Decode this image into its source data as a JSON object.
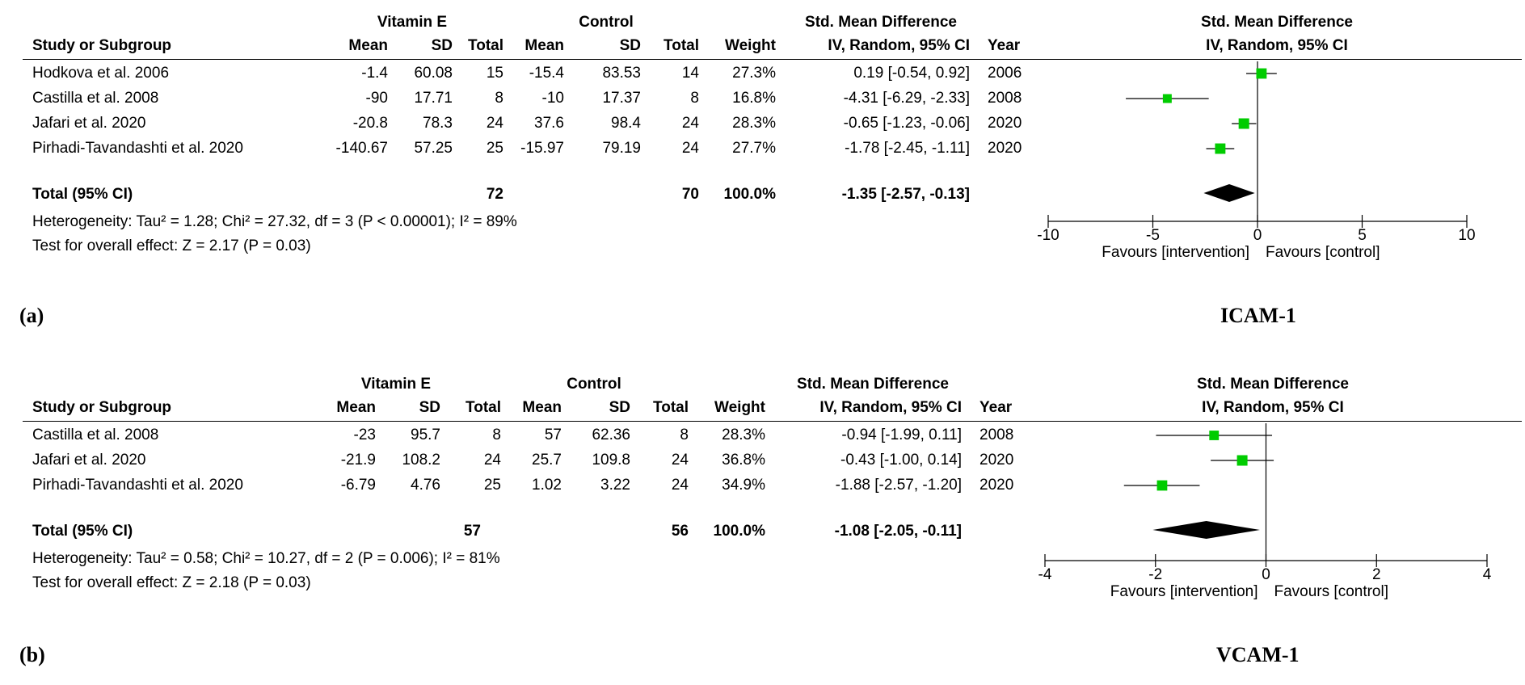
{
  "headers": {
    "study": "Study or Subgroup",
    "exp_group": "Vitamin E",
    "ctl_group": "Control",
    "mean": "Mean",
    "sd": "SD",
    "total": "Total",
    "weight": "Weight",
    "smd_title": "Std. Mean Difference",
    "smd_method": "IV, Random, 95% CI",
    "year": "Year",
    "plot_title": "Std. Mean Difference",
    "plot_method": "IV, Random, 95% CI"
  },
  "panels": [
    {
      "label": "(a)",
      "outcome": "ICAM-1",
      "studies": [
        {
          "name": "Hodkova et al. 2006",
          "e_mean": "-1.4",
          "e_sd": "60.08",
          "e_total": "15",
          "c_mean": "-15.4",
          "c_sd": "83.53",
          "c_total": "14",
          "weight": "27.3%",
          "ci_text": "0.19 [-0.54, 0.92]",
          "year": "2006"
        },
        {
          "name": "Castilla et al. 2008",
          "e_mean": "-90",
          "e_sd": "17.71",
          "e_total": "8",
          "c_mean": "-10",
          "c_sd": "17.37",
          "c_total": "8",
          "weight": "16.8%",
          "ci_text": "-4.31 [-6.29, -2.33]",
          "year": "2008"
        },
        {
          "name": "Jafari et al. 2020",
          "e_mean": "-20.8",
          "e_sd": "78.3",
          "e_total": "24",
          "c_mean": "37.6",
          "c_sd": "98.4",
          "c_total": "24",
          "weight": "28.3%",
          "ci_text": "-0.65 [-1.23, -0.06]",
          "year": "2020"
        },
        {
          "name": "Pirhadi-Tavandashti et al. 2020",
          "e_mean": "-140.67",
          "e_sd": "57.25",
          "e_total": "25",
          "c_mean": "-15.97",
          "c_sd": "79.19",
          "c_total": "24",
          "weight": "27.7%",
          "ci_text": "-1.78 [-2.45, -1.11]",
          "year": "2020"
        }
      ],
      "total": {
        "label": "Total (95% CI)",
        "e_total": "72",
        "c_total": "70",
        "weight": "100.0%",
        "ci_text": "-1.35 [-2.57, -0.13]"
      },
      "heterogeneity": "Heterogeneity: Tau² = 1.28; Chi² = 27.32, df = 3 (P < 0.00001); I² = 89%",
      "overall_effect": "Test for overall effect: Z = 2.17 (P = 0.03)",
      "favours_left": "Favours [intervention]",
      "favours_right": "Favours [control]"
    },
    {
      "label": "(b)",
      "outcome": "VCAM-1",
      "studies": [
        {
          "name": "Castilla et al. 2008",
          "e_mean": "-23",
          "e_sd": "95.7",
          "e_total": "8",
          "c_mean": "57",
          "c_sd": "62.36",
          "c_total": "8",
          "weight": "28.3%",
          "ci_text": "-0.94 [-1.99, 0.11]",
          "year": "2008"
        },
        {
          "name": "Jafari et al. 2020",
          "e_mean": "-21.9",
          "e_sd": "108.2",
          "e_total": "24",
          "c_mean": "25.7",
          "c_sd": "109.8",
          "c_total": "24",
          "weight": "36.8%",
          "ci_text": "-0.43 [-1.00, 0.14]",
          "year": "2020"
        },
        {
          "name": "Pirhadi-Tavandashti et al. 2020",
          "e_mean": "-6.79",
          "e_sd": "4.76",
          "e_total": "25",
          "c_mean": "1.02",
          "c_sd": "3.22",
          "c_total": "24",
          "weight": "34.9%",
          "ci_text": "-1.88 [-2.57, -1.20]",
          "year": "2020"
        }
      ],
      "total": {
        "label": "Total (95% CI)",
        "e_total": "57",
        "c_total": "56",
        "weight": "100.0%",
        "ci_text": "-1.08 [-2.05, -0.11]"
      },
      "heterogeneity": "Heterogeneity: Tau² = 0.58; Chi² = 10.27, df = 2 (P = 0.006); I² = 81%",
      "overall_effect": "Test for overall effect: Z = 2.18 (P = 0.03)",
      "favours_left": "Favours [intervention]",
      "favours_right": "Favours [control]"
    }
  ],
  "chart_data": [
    {
      "type": "forest",
      "title": "Std. Mean Difference",
      "subtitle": "IV, Random, 95% CI",
      "xlim": [
        -10,
        10
      ],
      "xticks": [
        -10,
        -5,
        0,
        5,
        10
      ],
      "xtick_labels": [
        "-10",
        "-5",
        "0",
        "5",
        "10"
      ],
      "series": [
        {
          "name": "Hodkova et al. 2006",
          "est": 0.19,
          "lo": -0.54,
          "hi": 0.92,
          "weight": 27.3
        },
        {
          "name": "Castilla et al. 2008",
          "est": -4.31,
          "lo": -6.29,
          "hi": -2.33,
          "weight": 16.8
        },
        {
          "name": "Jafari et al. 2020",
          "est": -0.65,
          "lo": -1.23,
          "hi": -0.06,
          "weight": 28.3
        },
        {
          "name": "Pirhadi-Tavandashti et al. 2020",
          "est": -1.78,
          "lo": -2.45,
          "hi": -1.11,
          "weight": 27.7
        }
      ],
      "pooled": {
        "est": -1.35,
        "lo": -2.57,
        "hi": -0.13
      },
      "marker_color": "#00cc00",
      "diamond_color": "#000000"
    },
    {
      "type": "forest",
      "title": "Std. Mean Difference",
      "subtitle": "IV, Random, 95% CI",
      "xlim": [
        -4,
        4
      ],
      "xticks": [
        -4,
        -2,
        0,
        2,
        4
      ],
      "xtick_labels": [
        "-4",
        "-2",
        "0",
        "2",
        "4"
      ],
      "series": [
        {
          "name": "Castilla et al. 2008",
          "est": -0.94,
          "lo": -1.99,
          "hi": 0.11,
          "weight": 28.3
        },
        {
          "name": "Jafari et al. 2020",
          "est": -0.43,
          "lo": -1.0,
          "hi": 0.14,
          "weight": 36.8
        },
        {
          "name": "Pirhadi-Tavandashti et al. 2020",
          "est": -1.88,
          "lo": -2.57,
          "hi": -1.2,
          "weight": 34.9
        }
      ],
      "pooled": {
        "est": -1.08,
        "lo": -2.05,
        "hi": -0.11
      },
      "marker_color": "#00cc00",
      "diamond_color": "#000000"
    }
  ]
}
